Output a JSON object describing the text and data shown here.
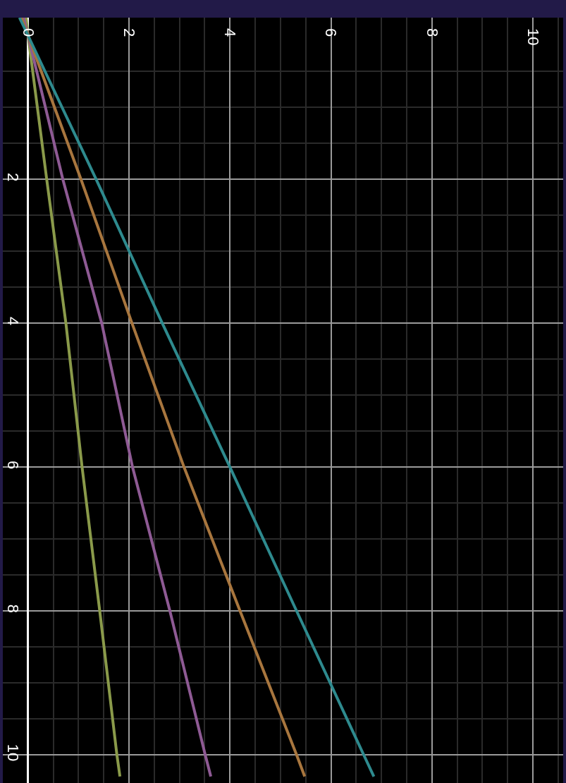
{
  "chart_data": {
    "type": "line",
    "series": [
      {
        "color": "#8a9a4a",
        "x": [
          -0.04,
          0,
          0.37,
          0.75,
          1.07,
          1.42,
          1.76,
          1.82
        ],
        "values": [
          -0.25,
          0,
          2,
          4,
          6,
          8,
          10,
          10.3
        ]
      },
      {
        "color": "#8e5a94",
        "x": [
          -0.09,
          0,
          0.69,
          1.46,
          2.07,
          2.81,
          3.51,
          3.62
        ],
        "values": [
          -0.25,
          0,
          2,
          4,
          6,
          8,
          10,
          10.3
        ]
      },
      {
        "color": "#a8763e",
        "x": [
          -0.13,
          0,
          1.05,
          2.06,
          3.09,
          4.2,
          5.32,
          5.48
        ],
        "values": [
          -0.25,
          0,
          2,
          4,
          6,
          8,
          10,
          10.3
        ]
      },
      {
        "color": "#2e8a8e",
        "x": [
          -0.17,
          0,
          1.35,
          2.66,
          4.0,
          5.32,
          6.65,
          6.85
        ],
        "values": [
          -0.25,
          0,
          2,
          4,
          6,
          8,
          10,
          10.3
        ]
      }
    ],
    "xlim": [
      -0.5,
      10.6
    ],
    "ylim": [
      10.39,
      -0.25
    ],
    "xticks": [
      0,
      2,
      4,
      6,
      8,
      10
    ],
    "yticks": [
      2,
      4,
      6,
      8,
      10
    ],
    "grid": true,
    "marker": "none",
    "line_style": "solid"
  }
}
